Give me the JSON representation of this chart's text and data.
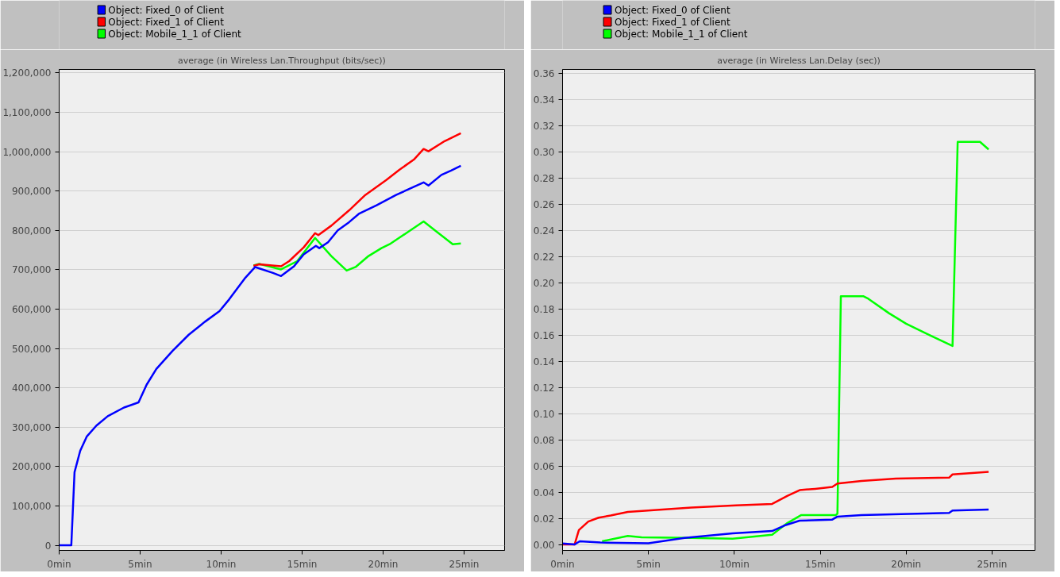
{
  "chart_data": [
    {
      "type": "line",
      "title": "average (in Wireless Lan.Throughput (bits/sec))",
      "legend": "top left",
      "grid": "y",
      "line_style": "solid",
      "xlim": [
        0,
        27.5
      ],
      "ylim": [
        -13000,
        1209000
      ],
      "xticks": [
        {
          "value": 0,
          "label": "0min"
        },
        {
          "value": 5,
          "label": "5min"
        },
        {
          "value": 10,
          "label": "10min"
        },
        {
          "value": 15,
          "label": "15min"
        },
        {
          "value": 20,
          "label": "20min"
        },
        {
          "value": 25,
          "label": "25min"
        }
      ],
      "yticks": [
        {
          "value": 0,
          "label": "0"
        },
        {
          "value": 100000,
          "label": "100,000"
        },
        {
          "value": 200000,
          "label": "200,000"
        },
        {
          "value": 300000,
          "label": "300,000"
        },
        {
          "value": 400000,
          "label": "400,000"
        },
        {
          "value": 500000,
          "label": "500,000"
        },
        {
          "value": 600000,
          "label": "600,000"
        },
        {
          "value": 700000,
          "label": "700,000"
        },
        {
          "value": 800000,
          "label": "800,000"
        },
        {
          "value": 900000,
          "label": "900,000"
        },
        {
          "value": 1000000,
          "label": "1,000,000"
        },
        {
          "value": 1100000,
          "label": "1,100,000"
        },
        {
          "value": 1200000,
          "label": "1,200,000"
        }
      ],
      "series": [
        {
          "name": "Object: Fixed_0 of Client",
          "color": "#0000ff",
          "x": [
            0,
            0.75,
            0.95,
            1.3,
            1.7,
            2.3,
            3,
            4,
            4.9,
            5.4,
            6,
            7,
            8,
            9,
            9.9,
            10.5,
            11.5,
            12.1,
            13.2,
            13.7,
            14.5,
            15.1,
            15.85,
            16.06,
            16.6,
            17.2,
            17.9,
            18.5,
            19.6,
            20.8,
            21.9,
            22.5,
            22.8,
            23.6,
            24.2,
            24.8
          ],
          "values": [
            0,
            0,
            186000,
            240000,
            276000,
            304000,
            328000,
            350000,
            363000,
            408000,
            448000,
            494000,
            535000,
            568000,
            595000,
            625000,
            680000,
            707000,
            692000,
            684000,
            709000,
            739000,
            761000,
            755000,
            770000,
            800000,
            821000,
            842000,
            864000,
            890000,
            911000,
            922000,
            914000,
            941000,
            952000,
            964000
          ]
        },
        {
          "name": "Object: Fixed_1 of Client",
          "color": "#ff0000",
          "x": [
            12.0,
            12.35,
            13.7,
            14.2,
            15.1,
            15.8,
            16.0,
            16.8,
            17.9,
            18.9,
            20.2,
            21.0,
            21.9,
            22.5,
            22.8,
            23.8,
            24.8
          ],
          "values": [
            710000,
            714000,
            709000,
            722000,
            757000,
            793000,
            788000,
            812000,
            851000,
            890000,
            928000,
            954000,
            980000,
            1007000,
            1001000,
            1027000,
            1047000
          ]
        },
        {
          "name": "Object: Mobile_1_1 of Client",
          "color": "#00ff00",
          "x": [
            12.0,
            12.35,
            13.7,
            14.7,
            15.8,
            16.8,
            17.75,
            18.3,
            19.1,
            19.9,
            20.4,
            21.5,
            22.5,
            23.2,
            24.3,
            24.8
          ],
          "values": [
            711000,
            715000,
            701000,
            722000,
            781000,
            735000,
            698000,
            707000,
            735000,
            755000,
            765000,
            795000,
            823000,
            800000,
            765000,
            767000
          ]
        }
      ]
    },
    {
      "type": "line",
      "title": "average (in Wireless Lan.Delay (sec))",
      "legend": "top left",
      "grid": "y",
      "line_style": "solid",
      "xlim": [
        0,
        27.5
      ],
      "ylim": [
        -0.004,
        0.363
      ],
      "xticks": [
        {
          "value": 0,
          "label": "0min"
        },
        {
          "value": 5,
          "label": "5min"
        },
        {
          "value": 10,
          "label": "10min"
        },
        {
          "value": 15,
          "label": "15min"
        },
        {
          "value": 20,
          "label": "20min"
        },
        {
          "value": 25,
          "label": "25min"
        }
      ],
      "yticks": [
        {
          "value": 0,
          "label": "0.00"
        },
        {
          "value": 0.02,
          "label": "0.02"
        },
        {
          "value": 0.04,
          "label": "0.04"
        },
        {
          "value": 0.06,
          "label": "0.06"
        },
        {
          "value": 0.08,
          "label": "0.08"
        },
        {
          "value": 0.1,
          "label": "0.10"
        },
        {
          "value": 0.12,
          "label": "0.12"
        },
        {
          "value": 0.14,
          "label": "0.14"
        },
        {
          "value": 0.16,
          "label": "0.16"
        },
        {
          "value": 0.18,
          "label": "0.18"
        },
        {
          "value": 0.2,
          "label": "0.20"
        },
        {
          "value": 0.22,
          "label": "0.22"
        },
        {
          "value": 0.24,
          "label": "0.24"
        },
        {
          "value": 0.26,
          "label": "0.26"
        },
        {
          "value": 0.28,
          "label": "0.28"
        },
        {
          "value": 0.3,
          "label": "0.30"
        },
        {
          "value": 0.32,
          "label": "0.32"
        },
        {
          "value": 0.34,
          "label": "0.34"
        },
        {
          "value": 0.36,
          "label": "0.36"
        }
      ],
      "series": [
        {
          "name": "Object: Fixed_0 of Client",
          "color": "#0000ff",
          "x": [
            0,
            0.7,
            1.0,
            2.2,
            5.0,
            7.1,
            9.9,
            12.2,
            13.0,
            13.8,
            15.7,
            16.0,
            17.4,
            22.5,
            22.7,
            24.8
          ],
          "values": [
            0.0013,
            0.0005,
            0.003,
            0.002,
            0.0015,
            0.0056,
            0.009,
            0.0108,
            0.0154,
            0.0187,
            0.0195,
            0.0218,
            0.023,
            0.0246,
            0.0264,
            0.0272
          ]
        },
        {
          "name": "Object: Fixed_1 of Client",
          "color": "#ff0000",
          "x": [
            0,
            0.7,
            0.95,
            1.5,
            2.1,
            2.8,
            3.8,
            7.5,
            10.1,
            12.2,
            13.1,
            13.8,
            14.7,
            15.7,
            16.0,
            17.4,
            19.4,
            22.5,
            22.7,
            24.8
          ],
          "values": [
            0.0005,
            0.0005,
            0.0115,
            0.018,
            0.021,
            0.0226,
            0.0254,
            0.0287,
            0.0303,
            0.0315,
            0.0377,
            0.042,
            0.043,
            0.0444,
            0.047,
            0.049,
            0.0508,
            0.0515,
            0.054,
            0.0559
          ]
        },
        {
          "name": "Object: Mobile_1_1 of Client",
          "color": "#00ff00",
          "x": [
            2.3,
            3.8,
            4.6,
            7.5,
            9.9,
            12.2,
            13.1,
            13.9,
            15.9,
            16.0,
            16.2,
            17.5,
            17.8,
            19.0,
            20.0,
            21.4,
            22.7,
            23.0,
            24.3,
            24.8
          ],
          "values": [
            0.003,
            0.007,
            0.006,
            0.0055,
            0.005,
            0.008,
            0.017,
            0.023,
            0.023,
            0.024,
            0.19,
            0.19,
            0.188,
            0.177,
            0.169,
            0.16,
            0.152,
            0.3077,
            0.3077,
            0.302
          ]
        }
      ]
    }
  ]
}
